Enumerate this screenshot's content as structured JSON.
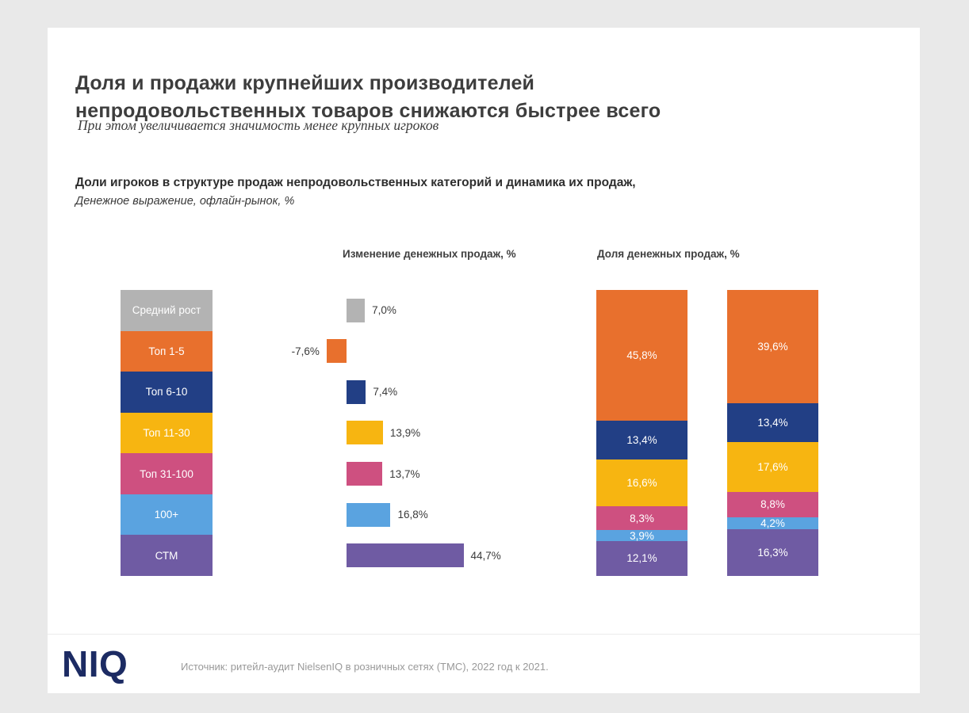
{
  "slide": {
    "title_line1": "Доля и продажи крупнейших производителей",
    "title_line2": "непродовольственных товаров снижаются быстрее всего",
    "subtitle": "При этом увеличивается значимость менее крупных игроков",
    "section_title": "Доли игроков в структуре продаж непродовольственных категорий и динамика их продаж,",
    "section_subtitle": "Денежное выражение, офлайн-рынок, %"
  },
  "colors": {
    "gray": "#b3b3b3",
    "orange": "#e8702d",
    "navy": "#223f85",
    "yellow": "#f7b511",
    "pink": "#ce5080",
    "light_blue": "#5aa3e0",
    "purple": "#6f5ba3",
    "logo_navy": "#1c2b63",
    "background": "#e9e9e9"
  },
  "legend": {
    "items": [
      {
        "label": "Средний рост",
        "color": "#b3b3b3"
      },
      {
        "label": "Топ 1-5",
        "color": "#e8702d"
      },
      {
        "label": "Топ 6-10",
        "color": "#223f85"
      },
      {
        "label": "Топ 11-30",
        "color": "#f7b511"
      },
      {
        "label": "Топ 31-100",
        "color": "#ce5080"
      },
      {
        "label": "100+",
        "color": "#5aa3e0"
      },
      {
        "label": "СТМ",
        "color": "#6f5ba3"
      }
    ]
  },
  "chart_data": [
    {
      "type": "bar",
      "orientation": "horizontal",
      "title": "Изменение денежных продаж, %",
      "categories": [
        "Средний рост",
        "Топ 1-5",
        "Топ 6-10",
        "Топ 11-30",
        "Топ 31-100",
        "100+",
        "СТМ"
      ],
      "values": [
        7.0,
        -7.6,
        7.4,
        13.9,
        13.7,
        16.8,
        44.7
      ],
      "labels": [
        "7,0%",
        "-7,6%",
        "7,4%",
        "13,9%",
        "13,7%",
        "16,8%",
        "44,7%"
      ],
      "colors": [
        "#b3b3b3",
        "#e8702d",
        "#223f85",
        "#f7b511",
        "#ce5080",
        "#5aa3e0",
        "#6f5ba3"
      ]
    },
    {
      "type": "stacked-bar",
      "title": "Доля денежных продаж, %",
      "segment_names": [
        "Топ 1-5",
        "Топ 6-10",
        "Топ 11-30",
        "Топ 31-100",
        "100+",
        "СТМ"
      ],
      "segment_colors": [
        "#e8702d",
        "#223f85",
        "#f7b511",
        "#ce5080",
        "#5aa3e0",
        "#6f5ba3"
      ],
      "columns": [
        {
          "values": [
            45.8,
            13.4,
            16.6,
            8.3,
            3.9,
            12.1
          ],
          "labels": [
            "45,8%",
            "13,4%",
            "16,6%",
            "8,3%",
            "3,9%",
            "12,1%"
          ]
        },
        {
          "values": [
            39.6,
            13.4,
            17.6,
            8.8,
            4.2,
            16.3
          ],
          "labels": [
            "39,6%",
            "13,4%",
            "17,6%",
            "8,8%",
            "4,2%",
            "16,3%"
          ]
        }
      ]
    }
  ],
  "footer": {
    "logo_text": "NIQ",
    "source": "Источник: ритейл-аудит NielsenIQ в розничных сетях (TMC), 2022 год к 2021."
  }
}
